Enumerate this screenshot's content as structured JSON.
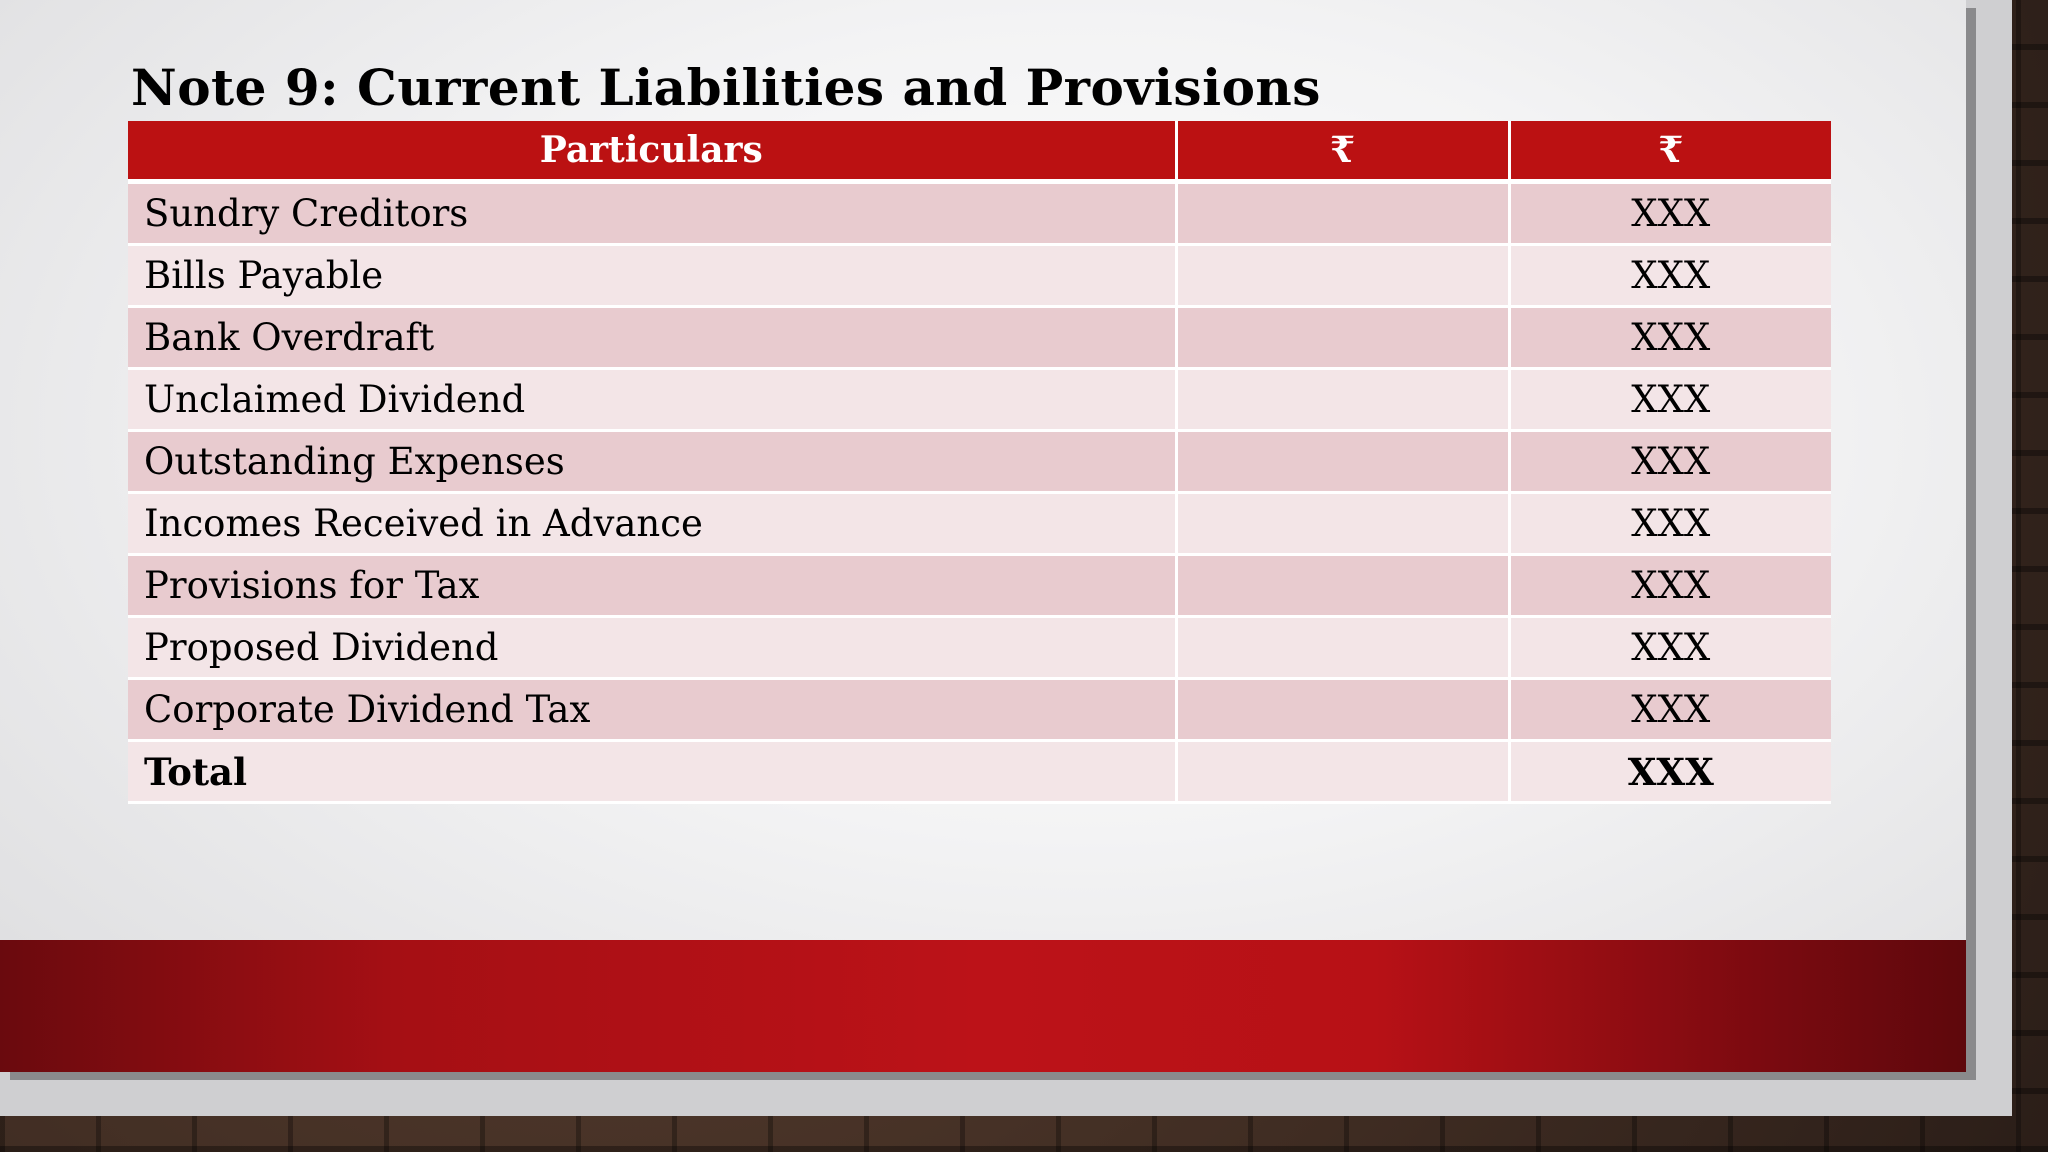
{
  "slide": {
    "title": "Note 9: Current Liabilities and Provisions"
  },
  "table": {
    "headers": [
      "Particulars",
      "₹",
      "₹"
    ],
    "rows": [
      {
        "particular": "Sundry Creditors",
        "col2": "",
        "col3": "XXX"
      },
      {
        "particular": "Bills Payable",
        "col2": "",
        "col3": "XXX"
      },
      {
        "particular": "Bank Overdraft",
        "col2": "",
        "col3": "XXX"
      },
      {
        "particular": "Unclaimed Dividend",
        "col2": "",
        "col3": "XXX"
      },
      {
        "particular": "Outstanding Expenses",
        "col2": "",
        "col3": "XXX"
      },
      {
        "particular": "Incomes Received in Advance",
        "col2": "",
        "col3": "XXX"
      },
      {
        "particular": "Provisions for Tax",
        "col2": "",
        "col3": "XXX"
      },
      {
        "particular": "Proposed Dividend",
        "col2": "",
        "col3": "XXX"
      },
      {
        "particular": "Corporate Dividend Tax",
        "col2": "",
        "col3": "XXX"
      },
      {
        "particular": "Total",
        "col2": "",
        "col3": "XXX"
      }
    ]
  },
  "colors": {
    "header_red": "#bb1112",
    "row_dark": "#e8cbcf",
    "row_light": "#f3e5e7",
    "band_red": "#bc1218"
  }
}
